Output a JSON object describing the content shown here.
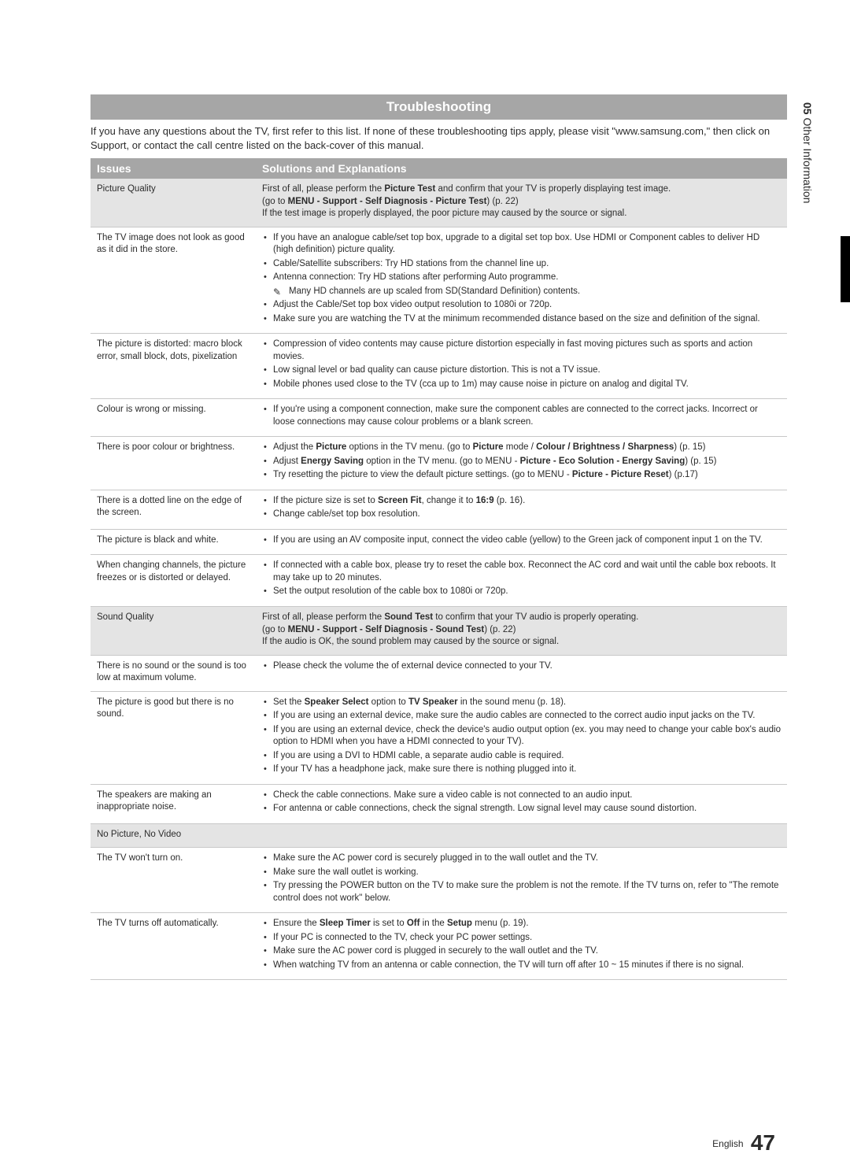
{
  "side": {
    "section": "05",
    "title": "Other Information"
  },
  "heading": "Troubleshooting",
  "intro": "If you have any questions about the TV, first refer to this list. If none of these troubleshooting tips apply, please visit \"www.samsung.com,\" then click on Support, or contact the call centre listed on the back-cover of this manual.",
  "th": {
    "issues": "Issues",
    "solutions": "Solutions and Explanations"
  },
  "rows": [
    {
      "shaded": true,
      "issue": "Picture Quality",
      "sol": {
        "html": "First of all, please perform the <b>Picture Test</b> and confirm that your TV is properly displaying test image.<br>(go to <b>MENU - Support - Self Diagnosis - Picture Test</b>) (p. 22)<br>If the test image is properly displayed, the poor picture may caused by the source or signal."
      }
    },
    {
      "issue": "The TV image does not look as good as it did in the store.",
      "sol": {
        "ul": [
          "If you have an analogue cable/set top box, upgrade to a digital set top box. Use HDMI or Component cables to deliver HD (high definition) picture quality.",
          "Cable/Satellite subscribers: Try HD stations from the channel line up.",
          "Antenna connection: Try HD stations after performing Auto programme."
        ],
        "note": "Many HD channels are up scaled from SD(Standard Definition) contents.",
        "ul2": [
          "Adjust the Cable/Set top box video output resolution to 1080i or 720p.",
          "Make sure you are watching the TV at the minimum recommended distance based on the size and definition of the signal."
        ]
      }
    },
    {
      "issue": "The picture is distorted: macro block error, small block, dots, pixelization",
      "sol": {
        "ul": [
          "Compression of video contents may cause picture distortion especially in fast moving pictures such as sports and action movies.",
          "Low signal level or bad quality can cause picture distortion. This is not a TV issue.",
          "Mobile phones used close to the TV (cca up to 1m) may cause noise in picture on analog and digital TV."
        ]
      }
    },
    {
      "issue": "Colour is wrong or missing.",
      "sol": {
        "ul": [
          "If you're using a component connection, make sure the component cables are connected to the correct jacks. Incorrect or loose connections may cause colour problems or a blank screen."
        ]
      }
    },
    {
      "issue": "There is poor colour or brightness.",
      "sol": {
        "ul": [
          "Adjust the <b>Picture</b> options in the TV menu. (go to <b>Picture</b> mode / <b>Colour / Brightness / Sharpness</b>) (p. 15)",
          "Adjust <b>Energy Saving</b> option in the TV menu. (go to MENU - <b>Picture - Eco Solution - Energy Saving</b>) (p. 15)",
          "Try resetting the picture to view the default picture settings. (go to MENU - <b>Picture - Picture Reset</b>) (p.17)"
        ]
      }
    },
    {
      "issue": "There is a dotted line on the edge of the screen.",
      "sol": {
        "ul": [
          "If the picture size is set to <b>Screen Fit</b>, change it to <b>16:9</b> (p. 16).",
          "Change cable/set top box resolution."
        ]
      }
    },
    {
      "issue": "The picture is black and white.",
      "sol": {
        "ul": [
          "If you are using an AV composite input, connect the video cable (yellow) to the Green jack of component input 1 on the TV."
        ]
      }
    },
    {
      "issue": "When changing channels, the picture freezes or is distorted or delayed.",
      "sol": {
        "ul": [
          "If connected with a cable box, please try to reset the cable box. Reconnect the AC cord and wait until the cable box reboots. It may take up to 20 minutes.",
          "Set the output resolution of the cable box to 1080i or 720p."
        ]
      }
    },
    {
      "shaded": true,
      "issue": "Sound Quality",
      "sol": {
        "html": "First of all, please perform the <b>Sound Test</b> to confirm that your TV audio is properly operating.<br>(go to <b>MENU - Support - Self Diagnosis - Sound Test</b>) (p. 22)<br>If the audio is OK, the sound problem may caused by the source or signal."
      }
    },
    {
      "issue": "There is no sound or the sound is too low at maximum volume.",
      "sol": {
        "ul": [
          "Please check the volume the of external device connected to your TV."
        ]
      }
    },
    {
      "issue": "The picture is good but there is no sound.",
      "sol": {
        "ul": [
          "Set the <b>Speaker Select</b> option to <b>TV Speaker</b> in the sound menu (p. 18).",
          "If you are using an external device, make sure the audio cables are connected to the correct audio input jacks on the TV.",
          "If you are using an external device, check the device's audio output option (ex. you may need to change your cable box's audio option to HDMI when you have a HDMI connected to your TV).",
          "If you are using a DVI to HDMI cable, a separate audio cable is required.",
          "If your TV has a headphone jack, make sure there is nothing plugged into it."
        ]
      }
    },
    {
      "issue": "The speakers are making an inappropriate noise.",
      "sol": {
        "ul": [
          "Check the cable connections. Make sure a video cable is not connected to an audio input.",
          "For antenna or cable connections, check the signal strength. Low signal level may cause sound distortion."
        ]
      }
    },
    {
      "shaded": true,
      "span": true,
      "issue": "No Picture, No Video"
    },
    {
      "issue": "The TV won't turn on.",
      "sol": {
        "ul": [
          "Make sure the AC power cord is securely plugged in to the wall outlet and the TV.",
          "Make sure the wall outlet is working.",
          "Try pressing the POWER button on the TV to make sure the problem is not the remote. If the TV turns on, refer to \"The remote control does not work\" below."
        ]
      }
    },
    {
      "issue": "The TV turns off automatically.",
      "sol": {
        "ul": [
          "Ensure the <b>Sleep Timer</b> is set to <b>Off</b> in the <b>Setup</b> menu (p. 19).",
          "If your PC is connected to the TV, check your PC power settings.",
          "Make sure the AC power cord is plugged in securely to the wall outlet and the TV.",
          "When watching TV from an antenna or cable connection, the TV will turn off after 10 ~ 15 minutes if there is no signal."
        ]
      }
    }
  ],
  "footer": {
    "lang": "English",
    "page": "47"
  }
}
